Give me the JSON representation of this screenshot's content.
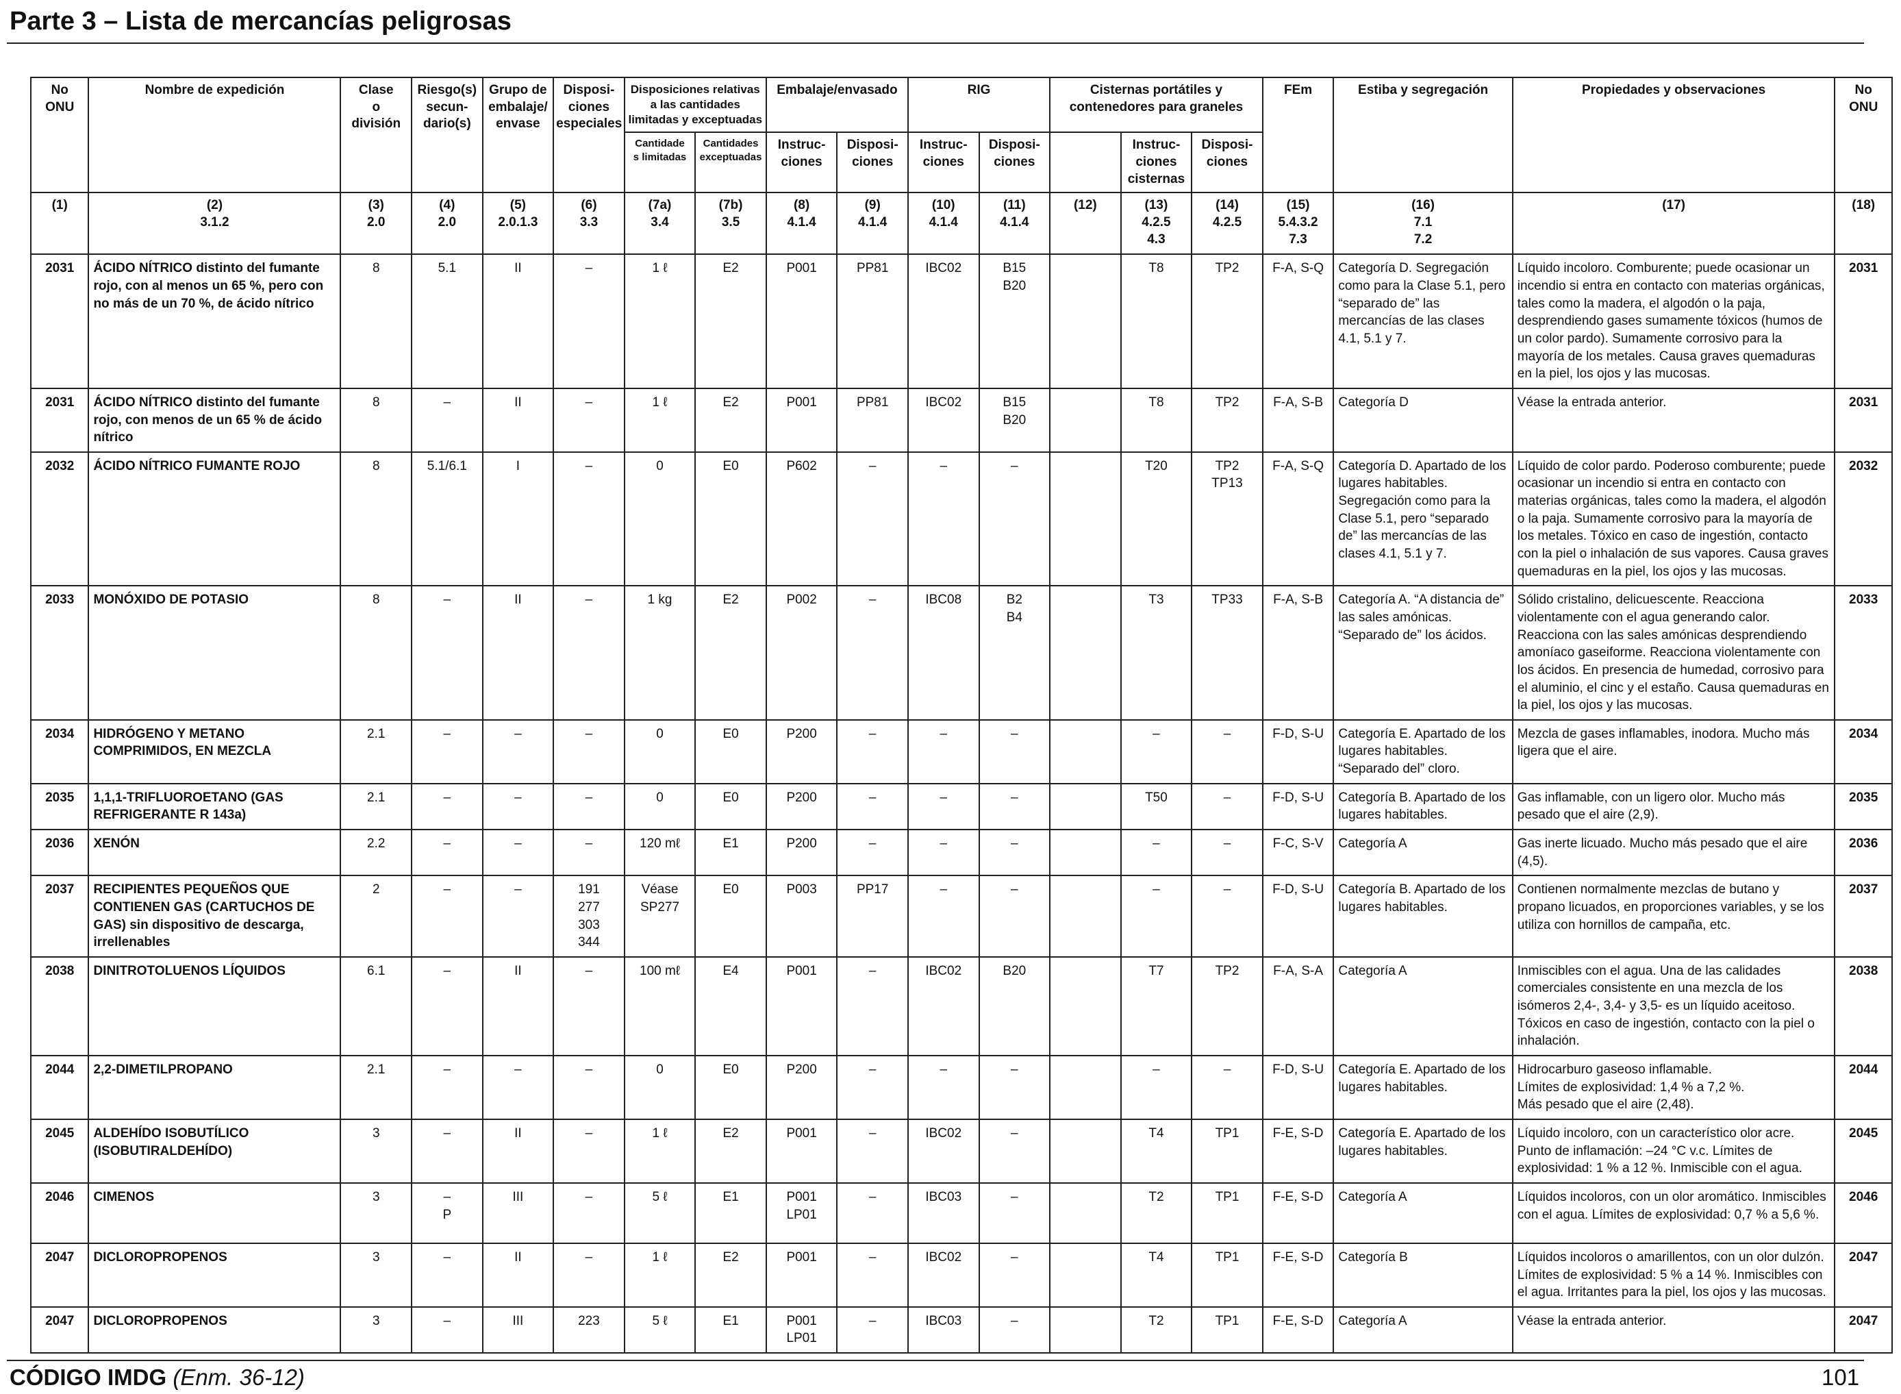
{
  "header": {
    "title": "Parte 3 – Lista de mercancías peligrosas"
  },
  "columns": {
    "no_onu": "No\nONU",
    "nombre": "Nombre de expedición",
    "clase": "Clase\no\ndivisión",
    "riesgo": "Riesgo(s)\nsecun-\ndario(s)",
    "grupo": "Grupo de\nembalaje/\nenvase",
    "dispesp": "Disposi-\nciones\nespeciales",
    "disp_cant": "Disposiciones relativas\na las cantidades\nlimitadas y exceptuadas",
    "cant_lim": "Cantidade\ns limitadas",
    "cant_exc": "Cantidades\nexceptuadas",
    "embalaje": "Embalaje/envasado",
    "emb_instr": "Instruc-\nciones",
    "emb_disp": "Disposi-\nciones",
    "rig": "RIG",
    "rig_instr": "Instruc-\nciones",
    "rig_disp": "Disposi-\nciones",
    "cisternas": "Cisternas portátiles y\ncontenedores para graneles",
    "cis_instr": "Instruc-\nciones\ncisternas",
    "cis_disp": "Disposi-\nciones",
    "fem": "FEm",
    "estiba": "Estiba y segregación",
    "propiedades": "Propiedades y observaciones",
    "no_onu_r": "No\nONU",
    "numbers": [
      "(1)",
      "(2)\n3.1.2",
      "(3)\n2.0",
      "(4)\n2.0",
      "(5)\n2.0.1.3",
      "(6)\n3.3",
      "(7a)\n3.4",
      "(7b)\n3.5",
      "(8)\n4.1.4",
      "(9)\n4.1.4",
      "(10)\n4.1.4",
      "(11)\n4.1.4",
      "(12)",
      "(13)\n4.2.5\n4.3",
      "(14)\n4.2.5",
      "(15)\n5.4.3.2\n7.3",
      "(16)\n7.1\n7.2",
      "(17)",
      "(18)"
    ]
  },
  "rows": [
    {
      "un": "2031",
      "name": "ÁCIDO NÍTRICO distinto del fumante rojo, con al menos un 65 %, pero con no más de un 70 %, de ácido nítrico",
      "cls": "8",
      "sub": "5.1",
      "pg": "II",
      "sp": "–",
      "ltd": "1 ℓ",
      "exc": "E2",
      "pi": "P001",
      "pp": "PP81",
      "ibc": "IBC02",
      "ibcp": "B15\nB20",
      "c12": "",
      "tank": "T8",
      "tp": "TP2",
      "ems": "F-A, S-Q",
      "stow": "Categoría D. Segregación como para la Clase 5.1, pero “separado de” las mercancías de las clases 4.1, 5.1 y 7.",
      "obs": "Líquido incoloro. Comburente; puede ocasionar un incendio si entra en contacto con materias orgánicas, tales como la madera, el algodón o la paja, desprendiendo gases sumamente tóxicos (humos de un color pardo). Sumamente corrosivo para la mayoría de los metales. Causa graves quemaduras en la piel, los ojos y las mucosas.",
      "un2": "2031"
    },
    {
      "un": "2031",
      "name": "ÁCIDO NÍTRICO distinto del fumante rojo, con menos de un 65 % de ácido nítrico",
      "cls": "8",
      "sub": "–",
      "pg": "II",
      "sp": "–",
      "ltd": "1 ℓ",
      "exc": "E2",
      "pi": "P001",
      "pp": "PP81",
      "ibc": "IBC02",
      "ibcp": "B15\nB20",
      "c12": "",
      "tank": "T8",
      "tp": "TP2",
      "ems": "F-A, S-B",
      "stow": "Categoría D",
      "obs": "Véase la entrada anterior.",
      "un2": "2031"
    },
    {
      "un": "2032",
      "name": "ÁCIDO NÍTRICO FUMANTE ROJO",
      "cls": "8",
      "sub": "5.1/6.1",
      "pg": "I",
      "sp": "–",
      "ltd": "0",
      "exc": "E0",
      "pi": "P602",
      "pp": "–",
      "ibc": "–",
      "ibcp": "–",
      "c12": "",
      "tank": "T20",
      "tp": "TP2\nTP13",
      "ems": "F-A, S-Q",
      "stow": "Categoría D. Apartado de los lugares habitables. Segregación como para la Clase 5.1, pero “separado de” las mercancías de las clases 4.1, 5.1 y 7.",
      "obs": "Líquido de color pardo. Poderoso comburente; puede ocasionar un incendio si entra en contacto con materias orgánicas, tales como la madera, el algodón o la paja. Sumamente corrosivo para la mayoría de los metales. Tóxico en caso de ingestión, contacto con la piel o inhalación de sus vapores. Causa graves quemaduras en la piel, los ojos y las mucosas.",
      "un2": "2032"
    },
    {
      "un": "2033",
      "name": "MONÓXIDO DE POTASIO",
      "cls": "8",
      "sub": "–",
      "pg": "II",
      "sp": "–",
      "ltd": "1 kg",
      "exc": "E2",
      "pi": "P002",
      "pp": "–",
      "ibc": "IBC08",
      "ibcp": "B2\nB4",
      "c12": "",
      "tank": "T3",
      "tp": "TP33",
      "ems": "F-A, S-B",
      "stow": "Categoría A. “A distancia de” las sales amónicas. “Separado de” los ácidos.",
      "obs": "Sólido cristalino, delicuescente. Reacciona violentamente con el agua generando calor. Reacciona con las sales amónicas desprendiendo amoníaco gaseiforme. Reacciona violentamente con los ácidos. En presencia de humedad, corrosivo para el aluminio, el cinc y el estaño. Causa quemaduras en la piel, los ojos y las mucosas.",
      "un2": "2033"
    },
    {
      "un": "2034",
      "name": "HIDRÓGENO Y METANO COMPRIMIDOS, EN MEZCLA",
      "cls": "2.1",
      "sub": "–",
      "pg": "–",
      "sp": "–",
      "ltd": "0",
      "exc": "E0",
      "pi": "P200",
      "pp": "–",
      "ibc": "–",
      "ibcp": "–",
      "c12": "",
      "tank": "–",
      "tp": "–",
      "ems": "F-D, S-U",
      "stow": "Categoría E. Apartado de los lugares habitables. “Separado del” cloro.",
      "obs": "Mezcla de gases inflamables, inodora. Mucho más ligera que el aire.",
      "un2": "2034"
    },
    {
      "un": "2035",
      "name": "1,1,1-TRIFLUOROETANO (GAS REFRIGERANTE R 143a)",
      "cls": "2.1",
      "sub": "–",
      "pg": "–",
      "sp": "–",
      "ltd": "0",
      "exc": "E0",
      "pi": "P200",
      "pp": "–",
      "ibc": "–",
      "ibcp": "–",
      "c12": "",
      "tank": "T50",
      "tp": "–",
      "ems": "F-D, S-U",
      "stow": "Categoría B. Apartado de los lugares habitables.",
      "obs": "Gas inflamable, con un ligero olor. Mucho más pesado que el aire (2,9).",
      "un2": "2035"
    },
    {
      "un": "2036",
      "name": "XENÓN",
      "cls": "2.2",
      "sub": "–",
      "pg": "–",
      "sp": "–",
      "ltd": "120 mℓ",
      "exc": "E1",
      "pi": "P200",
      "pp": "–",
      "ibc": "–",
      "ibcp": "–",
      "c12": "",
      "tank": "–",
      "tp": "–",
      "ems": "F-C, S-V",
      "stow": "Categoría A",
      "obs": "Gas inerte licuado. Mucho más pesado que el aire (4,5).",
      "un2": "2036"
    },
    {
      "un": "2037",
      "name": "RECIPIENTES PEQUEÑOS QUE CONTIENEN GAS (CARTUCHOS DE GAS) sin dispositivo de descarga, irrellenables",
      "cls": "2",
      "sub": "–",
      "pg": "–",
      "sp": "191\n277\n303\n344",
      "ltd": "Véase\nSP277",
      "exc": "E0",
      "pi": "P003",
      "pp": "PP17",
      "ibc": "–",
      "ibcp": "–",
      "c12": "",
      "tank": "–",
      "tp": "–",
      "ems": "F-D, S-U",
      "stow": "Categoría B. Apartado de los lugares habitables.",
      "obs": "Contienen normalmente mezclas de butano y propano licuados, en proporciones variables, y se los utiliza con hornillos de campaña, etc.",
      "un2": "2037"
    },
    {
      "un": "2038",
      "name": "DINITROTOLUENOS LÍQUIDOS",
      "cls": "6.1",
      "sub": "–",
      "pg": "II",
      "sp": "–",
      "ltd": "100 mℓ",
      "exc": "E4",
      "pi": "P001",
      "pp": "–",
      "ibc": "IBC02",
      "ibcp": "B20",
      "c12": "",
      "tank": "T7",
      "tp": "TP2",
      "ems": "F-A, S-A",
      "stow": "Categoría A",
      "obs": "Inmiscibles con el agua. Una de las calidades comerciales consistente en una mezcla de los isómeros 2,4-, 3,4- y 3,5- es un líquido aceitoso. Tóxicos en caso de ingestión, contacto con la piel o inhalación.",
      "un2": "2038"
    },
    {
      "un": "2044",
      "name": "2,2-DIMETILPROPANO",
      "cls": "2.1",
      "sub": "–",
      "pg": "–",
      "sp": "–",
      "ltd": "0",
      "exc": "E0",
      "pi": "P200",
      "pp": "–",
      "ibc": "–",
      "ibcp": "–",
      "c12": "",
      "tank": "–",
      "tp": "–",
      "ems": "F-D, S-U",
      "stow": "Categoría E. Apartado de los lugares habitables.",
      "obs": "Hidrocarburo gaseoso inflamable.\nLímites de explosividad: 1,4 % a 7,2 %.\nMás pesado que el aire (2,48).",
      "un2": "2044"
    },
    {
      "un": "2045",
      "name": "ALDEHÍDO ISOBUTÍLICO (ISOBUTIRALDEHÍDO)",
      "cls": "3",
      "sub": "–",
      "pg": "II",
      "sp": "–",
      "ltd": "1 ℓ",
      "exc": "E2",
      "pi": "P001",
      "pp": "–",
      "ibc": "IBC02",
      "ibcp": "–",
      "c12": "",
      "tank": "T4",
      "tp": "TP1",
      "ems": "F-E, S-D",
      "stow": "Categoría E. Apartado de los lugares habitables.",
      "obs": "Líquido incoloro, con un característico olor acre. Punto de inflamación: –24 °C v.c. Límites de explosividad: 1 % a 12 %. Inmiscible con el agua.",
      "un2": "2045"
    },
    {
      "un": "2046",
      "name": "CIMENOS",
      "cls": "3",
      "sub": "–\nP",
      "pg": "III",
      "sp": "–",
      "ltd": "5 ℓ",
      "exc": "E1",
      "pi": "P001\nLP01",
      "pp": "–",
      "ibc": "IBC03",
      "ibcp": "–",
      "c12": "",
      "tank": "T2",
      "tp": "TP1",
      "ems": "F-E, S-D",
      "stow": "Categoría A",
      "obs": "Líquidos incoloros, con un olor aromático. Inmiscibles con el agua. Límites de explosividad: 0,7 % a 5,6 %.",
      "un2": "2046"
    },
    {
      "un": "2047",
      "name": "DICLOROPROPENOS",
      "cls": "3",
      "sub": "–",
      "pg": "II",
      "sp": "–",
      "ltd": "1 ℓ",
      "exc": "E2",
      "pi": "P001",
      "pp": "–",
      "ibc": "IBC02",
      "ibcp": "–",
      "c12": "",
      "tank": "T4",
      "tp": "TP1",
      "ems": "F-E, S-D",
      "stow": "Categoría B",
      "obs": "Líquidos incoloros o amarillentos, con un olor dulzón. Límites de explosividad: 5 % a 14 %. Inmiscibles con el agua. Irritantes para la piel, los ojos y las mucosas.",
      "un2": "2047"
    },
    {
      "un": "2047",
      "name": "DICLOROPROPENOS",
      "cls": "3",
      "sub": "–",
      "pg": "III",
      "sp": "223",
      "ltd": "5 ℓ",
      "exc": "E1",
      "pi": "P001\nLP01",
      "pp": "–",
      "ibc": "IBC03",
      "ibcp": "–",
      "c12": "",
      "tank": "T2",
      "tp": "TP1",
      "ems": "F-E, S-D",
      "stow": "Categoría A",
      "obs": "Véase la entrada anterior.",
      "un2": "2047"
    }
  ],
  "footer": {
    "code": "CÓDIGO IMDG",
    "amendment": "(Enm. 36-12)",
    "page": "101"
  }
}
